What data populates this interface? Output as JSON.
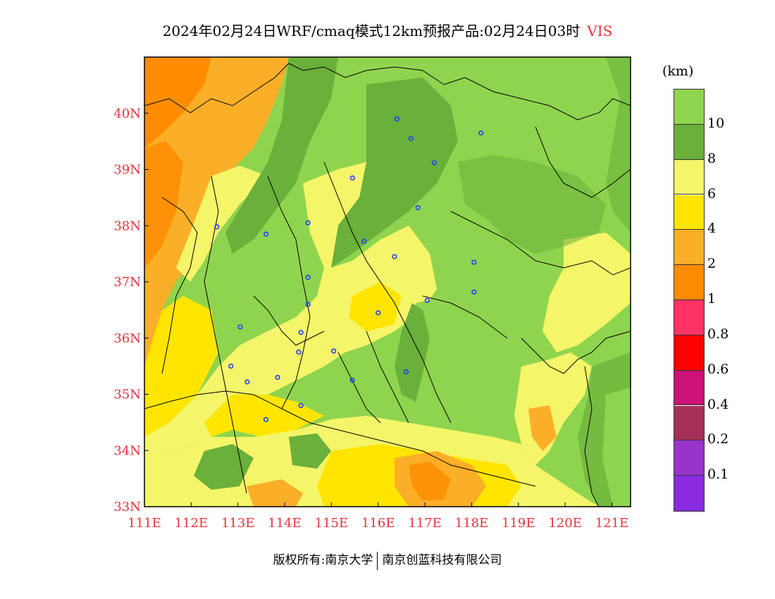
{
  "title": "2024年02月24日WRF/cmaq模式12km预报产品:02月24日03时",
  "variable": "VIS",
  "legend": {
    "unit": "(km)",
    "levels": [
      "10",
      "8",
      "6",
      "4",
      "2",
      "1",
      "0.8",
      "0.6",
      "0.4",
      "0.2",
      "0.1"
    ],
    "colors": [
      "#8fd44e",
      "#6ab03a",
      "#f5f56a",
      "#ffe500",
      "#fbaf28",
      "#ff8c00",
      "#ff3366",
      "#ff0000",
      "#cc1177",
      "#a6305a",
      "#9933cc",
      "#8a2be2"
    ]
  },
  "axes": {
    "lon_labels": [
      "111E",
      "112E",
      "113E",
      "114E",
      "115E",
      "116E",
      "117E",
      "118E",
      "119E",
      "120E",
      "121E"
    ],
    "lat_labels": [
      "33N",
      "34N",
      "35N",
      "36N",
      "37N",
      "38N",
      "39N",
      "40N"
    ],
    "lon_range": [
      111,
      121.4
    ],
    "lat_range": [
      33,
      41
    ]
  },
  "stations": [
    {
      "lon": 116.4,
      "lat": 39.9
    },
    {
      "lon": 116.7,
      "lat": 39.55
    },
    {
      "lon": 118.2,
      "lat": 39.65
    },
    {
      "lon": 117.2,
      "lat": 39.12
    },
    {
      "lon": 115.45,
      "lat": 38.85
    },
    {
      "lon": 116.85,
      "lat": 38.32
    },
    {
      "lon": 112.55,
      "lat": 37.98
    },
    {
      "lon": 114.5,
      "lat": 38.05
    },
    {
      "lon": 113.6,
      "lat": 37.85
    },
    {
      "lon": 115.7,
      "lat": 37.72
    },
    {
      "lon": 116.35,
      "lat": 37.45
    },
    {
      "lon": 118.05,
      "lat": 37.35
    },
    {
      "lon": 114.5,
      "lat": 37.08
    },
    {
      "lon": 118.05,
      "lat": 36.82
    },
    {
      "lon": 117.05,
      "lat": 36.67
    },
    {
      "lon": 114.5,
      "lat": 36.6
    },
    {
      "lon": 116.0,
      "lat": 36.45
    },
    {
      "lon": 113.05,
      "lat": 36.2
    },
    {
      "lon": 114.35,
      "lat": 36.1
    },
    {
      "lon": 114.3,
      "lat": 35.75
    },
    {
      "lon": 115.05,
      "lat": 35.77
    },
    {
      "lon": 112.85,
      "lat": 35.5
    },
    {
      "lon": 116.6,
      "lat": 35.4
    },
    {
      "lon": 113.85,
      "lat": 35.3
    },
    {
      "lon": 113.2,
      "lat": 35.22
    },
    {
      "lon": 115.45,
      "lat": 35.25
    },
    {
      "lon": 114.35,
      "lat": 34.8
    },
    {
      "lon": 113.6,
      "lat": 34.55
    }
  ],
  "footer": {
    "left": "版权所有:南京大学",
    "right": "南京创蓝科技有限公司"
  }
}
